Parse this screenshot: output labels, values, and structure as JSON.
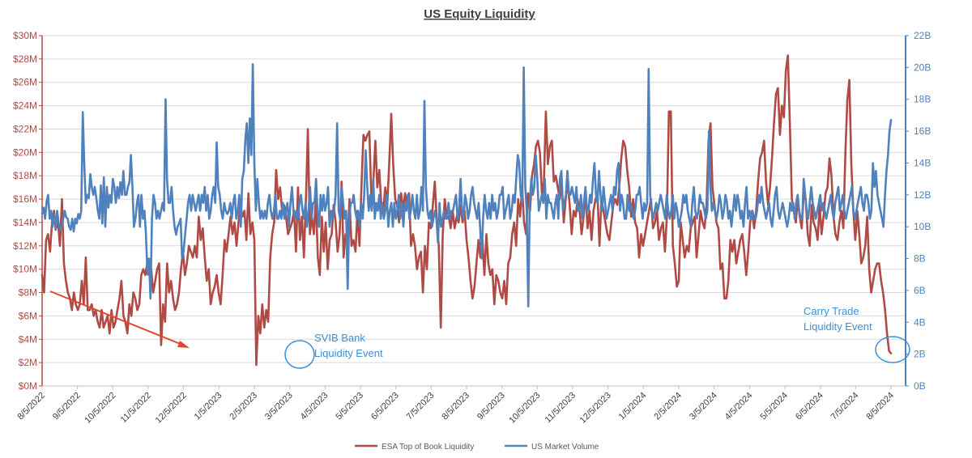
{
  "chart_data": {
    "type": "line",
    "title": "US Equity Liquidity",
    "x_tick_labels": [
      "8/5/2022",
      "9/5/2022",
      "10/5/2022",
      "11/5/2022",
      "12/5/2022",
      "1/5/2023",
      "2/5/2023",
      "3/5/2023",
      "4/5/2023",
      "5/5/2023",
      "6/5/2023",
      "7/5/2023",
      "8/5/2023",
      "9/5/2023",
      "10/5/2023",
      "11/5/2023",
      "12/5/2023",
      "1/5/2024",
      "2/5/2024",
      "3/5/2024",
      "4/5/2024",
      "5/5/2024",
      "6/5/2024",
      "7/5/2024",
      "8/5/2024"
    ],
    "y_left": {
      "unit": "$M",
      "range": [
        0,
        30
      ],
      "tick_labels": [
        "$0M",
        "$2M",
        "$4M",
        "$6M",
        "$8M",
        "$10M",
        "$12M",
        "$14M",
        "$16M",
        "$18M",
        "$20M",
        "$22M",
        "$24M",
        "$26M",
        "$28M",
        "$30M"
      ],
      "color": "#b04a45"
    },
    "y_right": {
      "unit": "B",
      "range": [
        0,
        22
      ],
      "tick_labels": [
        "0B",
        "2B",
        "4B",
        "6B",
        "8B",
        "10B",
        "12B",
        "14B",
        "16B",
        "18B",
        "20B",
        "22B"
      ],
      "color": "#4f81bd"
    },
    "series": [
      {
        "name": "ESA Top of Book Liquidity",
        "axis": "left",
        "color": "#b04a45",
        "values": [
          9.5,
          8.0,
          12.5,
          13.0,
          11.5,
          14.0,
          15.0,
          13.5,
          14.0,
          12.0,
          16.0,
          10.5,
          9.0,
          8.0,
          7.5,
          6.5,
          8.0,
          7.0,
          6.5,
          7.0,
          9.0,
          7.0,
          11.0,
          6.5,
          6.5,
          7.0,
          6.0,
          6.5,
          5.5,
          5.0,
          6.5,
          5.0,
          5.5,
          6.0,
          4.5,
          6.5,
          5.0,
          5.5,
          6.5,
          7.5,
          9.0,
          6.0,
          5.5,
          4.5,
          7.0,
          6.0,
          8.0,
          7.5,
          6.5,
          7.0,
          9.5,
          10.0,
          9.5,
          10.5,
          9.5,
          10.0,
          8.0,
          9.0,
          10.0,
          10.5,
          3.5,
          7.0,
          5.5,
          10.5,
          8.0,
          9.0,
          7.5,
          6.5,
          7.0,
          8.0,
          10.0,
          11.5,
          9.5,
          10.5,
          12.0,
          11.5,
          11.0,
          12.0,
          11.0,
          14.5,
          12.5,
          13.5,
          11.0,
          9.0,
          10.0,
          7.0,
          8.0,
          8.5,
          9.5,
          8.0,
          7.0,
          9.5,
          12.5,
          11.5,
          13.0,
          14.5,
          13.0,
          14.0,
          12.0,
          14.0,
          15.5,
          14.5,
          15.0,
          12.5,
          16.5,
          13.0,
          14.0,
          12.5,
          1.8,
          6.0,
          4.5,
          7.0,
          5.0,
          6.5,
          5.5,
          11.0,
          13.0,
          14.0,
          18.5,
          16.0,
          17.0,
          15.0,
          15.5,
          14.5,
          13.0,
          13.5,
          14.0,
          15.0,
          11.5,
          17.0,
          12.5,
          14.5,
          11.0,
          16.0,
          22.0,
          13.0,
          14.5,
          13.0,
          16.0,
          11.0,
          9.5,
          14.5,
          11.5,
          14.0,
          10.0,
          12.5,
          13.0,
          15.5,
          14.0,
          11.5,
          13.0,
          17.5,
          11.0,
          13.0,
          12.5,
          16.0,
          12.0,
          12.5,
          11.5,
          15.0,
          12.0,
          17.0,
          21.5,
          21.0,
          21.5,
          21.8,
          16.0,
          17.5,
          21.0,
          17.0,
          18.5,
          15.5,
          15.0,
          17.0,
          15.5,
          19.0,
          23.3,
          19.0,
          16.0,
          15.5,
          14.0,
          16.5,
          15.0,
          16.5,
          15.5,
          16.5,
          12.0,
          13.0,
          12.0,
          10.0,
          11.0,
          11.5,
          8.0,
          12.0,
          10.0,
          14.0,
          13.5,
          15.5,
          17.5,
          14.0,
          12.0,
          5.0,
          13.0,
          16.0,
          14.5,
          14.5,
          13.5,
          15.0,
          13.5,
          14.5,
          14.0,
          15.5,
          14.0,
          15.0,
          12.5,
          11.0,
          9.0,
          7.5,
          8.5,
          10.5,
          12.5,
          11.0,
          12.5,
          9.5,
          13.0,
          10.5,
          9.5,
          10.0,
          7.0,
          9.5,
          9.0,
          8.0,
          7.5,
          9.0,
          7.0,
          10.5,
          11.0,
          13.0,
          14.0,
          12.0,
          16.0,
          14.5,
          17.0,
          14.0,
          13.0,
          16.5,
          15.0,
          18.0,
          19.0,
          20.5,
          21.0,
          20.0,
          16.5,
          17.5,
          23.5,
          19.0,
          20.5,
          21.0,
          17.5,
          18.0,
          17.0,
          16.0,
          17.5,
          14.0,
          16.0,
          17.5,
          15.5,
          13.0,
          15.0,
          14.5,
          16.0,
          15.0,
          13.0,
          14.5,
          16.5,
          13.5,
          15.0,
          12.5,
          15.0,
          16.0,
          16.5,
          12.0,
          16.0,
          15.0,
          14.0,
          13.0,
          12.5,
          14.0,
          15.5,
          16.0,
          15.5,
          17.0,
          19.5,
          21.0,
          20.5,
          18.5,
          17.0,
          14.5,
          16.0,
          14.0,
          13.5,
          11.0,
          13.0,
          12.0,
          13.0,
          14.0,
          15.0,
          16.0,
          13.5,
          14.0,
          15.0,
          12.5,
          13.5,
          14.0,
          11.5,
          14.5,
          23.5,
          23.5,
          12.0,
          10.5,
          8.5,
          9.0,
          14.0,
          12.5,
          11.0,
          12.0,
          11.5,
          13.5,
          14.0,
          14.5,
          11.0,
          13.0,
          15.0,
          14.0,
          13.5,
          15.5,
          21.0,
          22.5,
          17.0,
          15.5,
          14.0,
          13.5,
          10.0,
          10.5,
          7.5,
          7.5,
          9.0,
          12.5,
          11.5,
          12.5,
          10.5,
          11.5,
          12.5,
          13.0,
          11.5,
          9.5,
          11.5,
          14.0,
          15.0,
          13.5,
          15.0,
          17.5,
          19.5,
          20.0,
          21.0,
          17.5,
          15.5,
          17.0,
          19.5,
          22.5,
          25.0,
          25.5,
          21.5,
          24.0,
          23.0,
          27.0,
          28.3,
          22.5,
          16.0,
          15.0,
          14.0,
          16.0,
          14.5,
          13.5,
          16.5,
          16.0,
          13.0,
          12.0,
          15.5,
          14.0,
          13.5,
          12.5,
          15.5,
          13.0,
          14.5,
          16.5,
          17.0,
          19.5,
          18.0,
          14.5,
          13.0,
          12.5,
          14.0,
          15.0,
          13.5,
          20.0,
          24.5,
          26.2,
          19.0,
          15.0,
          12.5,
          15.0,
          13.0,
          10.5,
          11.0,
          12.0,
          14.5,
          10.0,
          8.0,
          9.0,
          10.0,
          10.5,
          10.5,
          9.0,
          8.0,
          6.5,
          4.5,
          3.0,
          2.8
        ]
      },
      {
        "name": "US Market Volume",
        "axis": "right",
        "color": "#4f81bd",
        "values": [
          10.8,
          11.2,
          10.5,
          11.6,
          12.0,
          10.5,
          11.0,
          10.0,
          10.8,
          9.8,
          11.0,
          10.2,
          9.8,
          10.0,
          10.5,
          11.0,
          10.6,
          10.5,
          10.0,
          9.8,
          10.5,
          9.7,
          10.5,
          10.2,
          10.8,
          10.5,
          11.0,
          17.2,
          14.0,
          11.5,
          12.0,
          11.8,
          13.3,
          12.5,
          12.0,
          12.5,
          11.8,
          11.0,
          10.5,
          12.6,
          10.2,
          13.1,
          10.0,
          12.5,
          11.2,
          12.0,
          11.5,
          13.0,
          12.5,
          11.5,
          12.5,
          11.8,
          12.8,
          12.0,
          13.5,
          12.0,
          12.0,
          12.5,
          12.8,
          14.5,
          12.5,
          10.0,
          10.5,
          11.5,
          12.0,
          10.0,
          12.0,
          10.5,
          11.0,
          9.5,
          7.0,
          8.0,
          5.5,
          10.5,
          12.0,
          11.5,
          10.5,
          11.0,
          10.5,
          11.0,
          11.5,
          11.0,
          18.0,
          13.0,
          11.5,
          11.5,
          12.5,
          11.0,
          10.0,
          9.5,
          10.0,
          10.2,
          10.5,
          8.0,
          8.5,
          9.5,
          10.5,
          11.5,
          12.0,
          11.0,
          12.0,
          11.5,
          11.0,
          11.5,
          12.0,
          11.0,
          12.0,
          11.5,
          12.5,
          11.0,
          12.0,
          10.5,
          11.0,
          12.0,
          12.5,
          11.5,
          15.3,
          12.5,
          12.0,
          11.0,
          10.5,
          11.5,
          11.0,
          10.8,
          11.0,
          11.5,
          10.5,
          11.5,
          12.0,
          10.5,
          11.0,
          12.0,
          10.0,
          13.0,
          13.5,
          15.5,
          16.5,
          14.0,
          16.8,
          14.5,
          20.2,
          14.0,
          11.0,
          13.0,
          11.5,
          10.5,
          11.0,
          10.5,
          11.0,
          10.5,
          11.5,
          12.0,
          11.0,
          10.5,
          11.0,
          12.0,
          10.5,
          10.5,
          11.0,
          10.5,
          11.5,
          10.5,
          11.0,
          11.5,
          10.0,
          11.5,
          12.5,
          11.0,
          10.5,
          11.0,
          10.5,
          11.5,
          12.0,
          11.0,
          10.5,
          11.5,
          10.0,
          11.0,
          12.5,
          10.5,
          11.5,
          11.5,
          13.0,
          11.0,
          10.0,
          12.0,
          11.0,
          12.0,
          11.0,
          11.5,
          12.5,
          10.0,
          11.0,
          10.5,
          11.0,
          12.0,
          16.5,
          11.0,
          10.5,
          12.5,
          11.5,
          10.5,
          11.0,
          6.1,
          10.5,
          11.5,
          11.5,
          12.0,
          11.0,
          10.5,
          11.0,
          10.0,
          11.5,
          10.5,
          12.0,
          14.8,
          12.5,
          11.0,
          12.0,
          11.0,
          13.0,
          10.5,
          11.5,
          11.0,
          12.0,
          10.5,
          11.5,
          10.5,
          11.0,
          12.0,
          10.0,
          11.0,
          11.5,
          10.0,
          11.5,
          10.5,
          11.0,
          12.0,
          10.5,
          11.5,
          10.0,
          11.5,
          11.0,
          12.0,
          10.5,
          11.0,
          12.0,
          11.0,
          10.5,
          12.0,
          10.5,
          11.0,
          12.5,
          11.0,
          17.9,
          12.5,
          11.0,
          10.5,
          11.0,
          10.0,
          10.5,
          11.0,
          10.5,
          9.0,
          11.5,
          10.0,
          10.5,
          11.0,
          10.5,
          10.5,
          11.5,
          10.5,
          11.0,
          11.0,
          11.5,
          12.0,
          10.5,
          11.0,
          13.0,
          11.0,
          10.5,
          12.0,
          11.5,
          10.5,
          11.0,
          12.0,
          12.5,
          11.5,
          11.0,
          10.5,
          11.5,
          10.0,
          8.0,
          10.5,
          12.0,
          11.0,
          10.5,
          11.5,
          10.5,
          12.0,
          11.0,
          11.5,
          10.5,
          11.0,
          12.0,
          12.0,
          12.5,
          10.5,
          11.0,
          11.5,
          12.0,
          10.5,
          11.0,
          12.0,
          11.5,
          13.0,
          14.5,
          14.0,
          12.0,
          11.5,
          20.0,
          12.5,
          11.0,
          5.0,
          11.5,
          13.0,
          12.0,
          12.5,
          14.5,
          13.0,
          11.0,
          11.5,
          12.0,
          11.5,
          13.0,
          10.5,
          12.0,
          11.5,
          11.5,
          11.0,
          10.5,
          11.5,
          12.0,
          10.5,
          13.0,
          13.5,
          11.0,
          11.5,
          12.0,
          13.5,
          12.0,
          12.0,
          12.5,
          12.0,
          11.5,
          12.5,
          11.0,
          11.0,
          12.0,
          10.5,
          11.5,
          12.5,
          11.0,
          11.0,
          12.0,
          11.5,
          13.0,
          14.0,
          12.0,
          11.5,
          13.5,
          12.0,
          11.0,
          12.5,
          11.5,
          10.5,
          11.0,
          11.5,
          12.0,
          11.0,
          12.5,
          12.0,
          13.5,
          14.0,
          11.0,
          12.0,
          11.5,
          10.5,
          10.5,
          12.0,
          11.0,
          11.5,
          11.0,
          10.5,
          11.0,
          12.0,
          12.0,
          12.5,
          11.5,
          10.5,
          11.5,
          11.0,
          11.5,
          19.9,
          12.0,
          11.0,
          10.5,
          11.0,
          11.5,
          11.0,
          11.5,
          12.0,
          11.5,
          11.0,
          10.5,
          12.0,
          11.0,
          10.5,
          11.0,
          12.0,
          10.5,
          11.5,
          11.0,
          10.0,
          10.5,
          11.0,
          12.0,
          11.5,
          12.0,
          11.0,
          10.5,
          10.0,
          11.5,
          12.5,
          11.0,
          10.5,
          11.0,
          12.0,
          11.5,
          11.5,
          11.0,
          10.5,
          11.0,
          16.0,
          12.5,
          11.0,
          11.5,
          11.0,
          10.5,
          11.0,
          12.0,
          11.5,
          10.5,
          11.0,
          12.0,
          11.5,
          10.5,
          11.0,
          10.0,
          11.0,
          12.0,
          11.0,
          12.0,
          11.5,
          10.5,
          11.0,
          10.0,
          11.5,
          12.5,
          10.5,
          11.0,
          10.5,
          11.0,
          10.5,
          10.5,
          11.0,
          12.0,
          11.5,
          12.5,
          11.5,
          11.0,
          10.5,
          11.0,
          11.5,
          10.5,
          10.0,
          11.0,
          12.0,
          12.5,
          11.0,
          10.5,
          11.0,
          11.5,
          11.0,
          10.5,
          10.0,
          10.5,
          11.5,
          11.0,
          11.5,
          10.5,
          11.5,
          12.0,
          11.0,
          10.5,
          10.5,
          13.0,
          12.0,
          11.0,
          10.5,
          11.5,
          12.5,
          11.5,
          11.0,
          10.5,
          11.0,
          11.5,
          12.0,
          11.0,
          11.5,
          11.0,
          10.5,
          11.0,
          11.5,
          12.0,
          11.0,
          10.5,
          11.5,
          12.0,
          12.5,
          11.0,
          11.5,
          12.0,
          11.0,
          10.5,
          11.0,
          11.5,
          12.0,
          12.5,
          11.0,
          10.5,
          11.0,
          11.5,
          12.0,
          12.5,
          11.5,
          11.0,
          12.0,
          12.0,
          11.5,
          10.5,
          11.0,
          14.0,
          12.5,
          13.5,
          12.0,
          11.5,
          11.0,
          10.5,
          10.0,
          12.0,
          13.5,
          14.5,
          16.0,
          16.7
        ]
      }
    ],
    "legend": [
      "ESA Top of Book Liquidity",
      "US Market Volume"
    ],
    "legend_position": "bottom",
    "annotations": [
      {
        "text_lines": [
          "SVIB Bank",
          "Liquidity Event"
        ],
        "color": "#3d8fd6"
      },
      {
        "text_lines": [
          "Carry Trade",
          "Liquidity Event"
        ],
        "color": "#3d8fd6"
      }
    ],
    "grid": "horizontal"
  }
}
